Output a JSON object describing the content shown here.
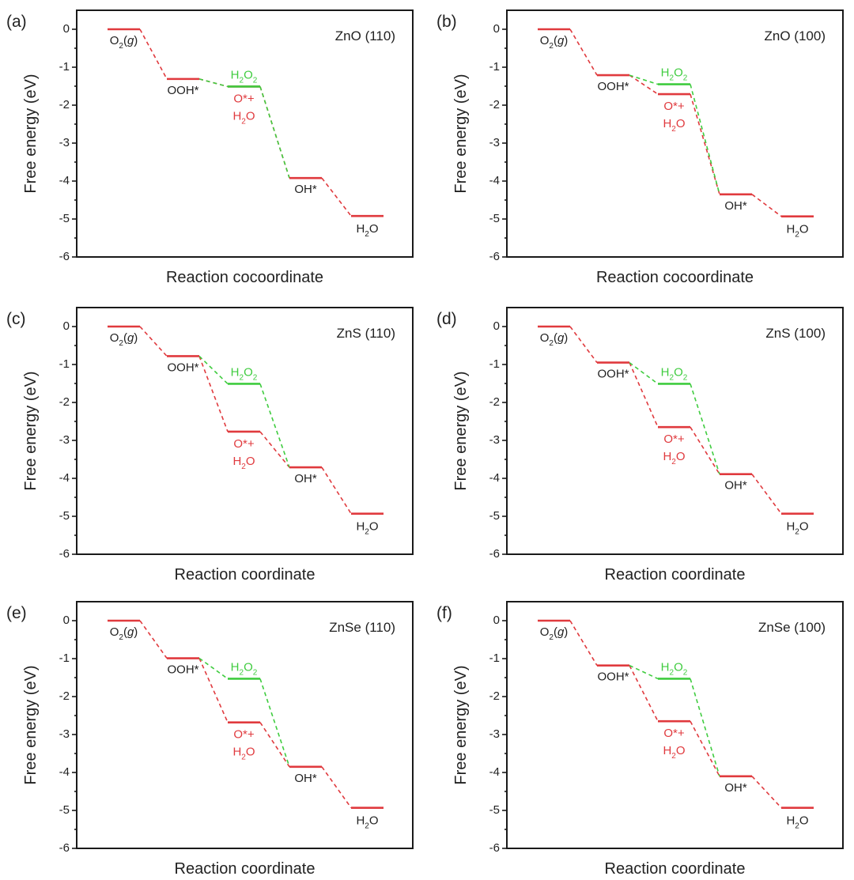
{
  "colors": {
    "ooh_path": "#e03a3e",
    "h2o2_path": "#3fcc3f",
    "axis": "#1a1a1a",
    "label_dark": "#222222"
  },
  "chart_data": [
    {
      "type": "line",
      "panel": "(a)",
      "title": "ZnO (110)",
      "xlabel": "Reaction cocoordinate",
      "ylabel": "Free energy (eV)",
      "ylim": [
        -6,
        0.5
      ],
      "yticks": [
        0,
        -1,
        -2,
        -3,
        -4,
        -5,
        -6
      ],
      "levels": [
        {
          "species": "O2(g)",
          "step": 0,
          "energy": 0.0,
          "path": "red"
        },
        {
          "species": "OOH*",
          "step": 1,
          "energy": -1.31,
          "path": "red"
        },
        {
          "species": "H2O2",
          "step": 2,
          "energy": -1.51,
          "path": "green"
        },
        {
          "species": "O*+H2O",
          "step": 2,
          "energy": -1.51,
          "path": "red"
        },
        {
          "species": "OH*",
          "step": 3,
          "energy": -3.92,
          "path": "red"
        },
        {
          "species": "H2O",
          "step": 4,
          "energy": -4.92,
          "path": "red"
        }
      ]
    },
    {
      "type": "line",
      "panel": "(b)",
      "title": "ZnO (100)",
      "xlabel": "Reaction cocoordinate",
      "ylabel": "Free energy (eV)",
      "ylim": [
        -6,
        0.5
      ],
      "yticks": [
        0,
        -1,
        -2,
        -3,
        -4,
        -5,
        -6
      ],
      "levels": [
        {
          "species": "O2(g)",
          "step": 0,
          "energy": 0.0,
          "path": "red"
        },
        {
          "species": "OOH*",
          "step": 1,
          "energy": -1.21,
          "path": "red"
        },
        {
          "species": "H2O2",
          "step": 2,
          "energy": -1.45,
          "path": "green"
        },
        {
          "species": "O*+H2O",
          "step": 2,
          "energy": -1.71,
          "path": "red"
        },
        {
          "species": "OH*",
          "step": 3,
          "energy": -4.35,
          "path": "red"
        },
        {
          "species": "H2O",
          "step": 4,
          "energy": -4.93,
          "path": "red"
        }
      ]
    },
    {
      "type": "line",
      "panel": "(c)",
      "title": "ZnS (110)",
      "xlabel": "Reaction coordinate",
      "ylabel": "Free energy (eV)",
      "ylim": [
        -6,
        0.5
      ],
      "yticks": [
        0,
        -1,
        -2,
        -3,
        -4,
        -5,
        -6
      ],
      "levels": [
        {
          "species": "O2(g)",
          "step": 0,
          "energy": 0.0,
          "path": "red"
        },
        {
          "species": "OOH*",
          "step": 1,
          "energy": -0.78,
          "path": "red"
        },
        {
          "species": "H2O2",
          "step": 2,
          "energy": -1.51,
          "path": "green"
        },
        {
          "species": "O*+H2O",
          "step": 2,
          "energy": -2.77,
          "path": "red"
        },
        {
          "species": "OH*",
          "step": 3,
          "energy": -3.71,
          "path": "red"
        },
        {
          "species": "H2O",
          "step": 4,
          "energy": -4.93,
          "path": "red"
        }
      ]
    },
    {
      "type": "line",
      "panel": "(d)",
      "title": "ZnS (100)",
      "xlabel": "Reaction coordinate",
      "ylabel": "Free energy (eV)",
      "ylim": [
        -6,
        0.5
      ],
      "yticks": [
        0,
        -1,
        -2,
        -3,
        -4,
        -5,
        -6
      ],
      "levels": [
        {
          "species": "O2(g)",
          "step": 0,
          "energy": 0.0,
          "path": "red"
        },
        {
          "species": "OOH*",
          "step": 1,
          "energy": -0.95,
          "path": "red"
        },
        {
          "species": "H2O2",
          "step": 2,
          "energy": -1.51,
          "path": "green"
        },
        {
          "species": "O*+H2O",
          "step": 2,
          "energy": -2.65,
          "path": "red"
        },
        {
          "species": "OH*",
          "step": 3,
          "energy": -3.89,
          "path": "red"
        },
        {
          "species": "H2O",
          "step": 4,
          "energy": -4.93,
          "path": "red"
        }
      ]
    },
    {
      "type": "line",
      "panel": "(e)",
      "title": "ZnSe (110)",
      "xlabel": "Reaction coordinate",
      "ylabel": "Free energy (eV)",
      "ylim": [
        -6,
        0.5
      ],
      "yticks": [
        0,
        -1,
        -2,
        -3,
        -4,
        -5,
        -6
      ],
      "levels": [
        {
          "species": "O2(g)",
          "step": 0,
          "energy": 0.0,
          "path": "red"
        },
        {
          "species": "OOH*",
          "step": 1,
          "energy": -0.99,
          "path": "red"
        },
        {
          "species": "H2O2",
          "step": 2,
          "energy": -1.53,
          "path": "green"
        },
        {
          "species": "O*+H2O",
          "step": 2,
          "energy": -2.68,
          "path": "red"
        },
        {
          "species": "OH*",
          "step": 3,
          "energy": -3.85,
          "path": "red"
        },
        {
          "species": "H2O",
          "step": 4,
          "energy": -4.93,
          "path": "red"
        }
      ]
    },
    {
      "type": "line",
      "panel": "(f)",
      "title": "ZnSe (100)",
      "xlabel": "Reaction coordinate",
      "ylabel": "Free energy (eV)",
      "ylim": [
        -6,
        0.5
      ],
      "yticks": [
        0,
        -1,
        -2,
        -3,
        -4,
        -5,
        -6
      ],
      "levels": [
        {
          "species": "O2(g)",
          "step": 0,
          "energy": 0.0,
          "path": "red"
        },
        {
          "species": "OOH*",
          "step": 1,
          "energy": -1.18,
          "path": "red"
        },
        {
          "species": "H2O2",
          "step": 2,
          "energy": -1.53,
          "path": "green"
        },
        {
          "species": "O*+H2O",
          "step": 2,
          "energy": -2.65,
          "path": "red"
        },
        {
          "species": "OH*",
          "step": 3,
          "energy": -4.1,
          "path": "red"
        },
        {
          "species": "H2O",
          "step": 4,
          "energy": -4.93,
          "path": "red"
        }
      ]
    }
  ]
}
